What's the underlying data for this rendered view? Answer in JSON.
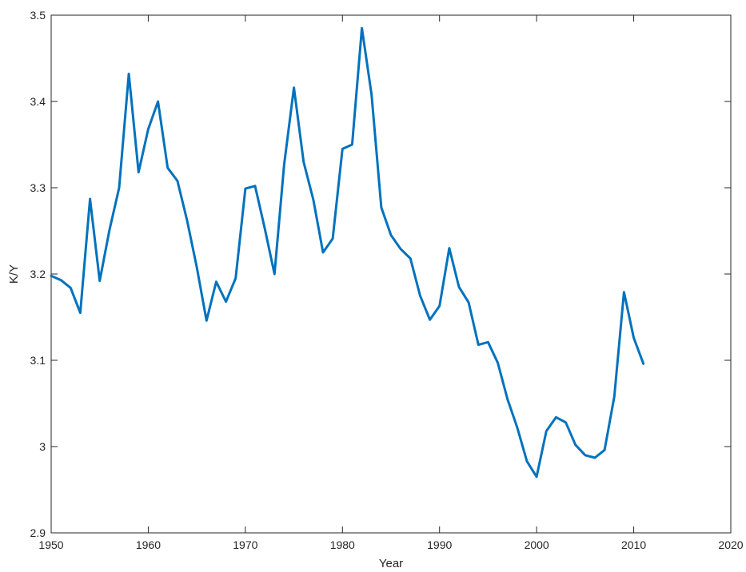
{
  "chart_data": {
    "type": "line",
    "title": "",
    "xlabel": "Year",
    "ylabel": "K/Y",
    "xlim": [
      1950,
      2020
    ],
    "ylim": [
      2.9,
      3.5
    ],
    "xticks": [
      1950,
      1960,
      1970,
      1980,
      1990,
      2000,
      2010,
      2020
    ],
    "yticks": [
      2.9,
      3.0,
      3.1,
      3.2,
      3.3,
      3.4,
      3.5
    ],
    "xtick_labels": [
      "1950",
      "1960",
      "1970",
      "1980",
      "1990",
      "2000",
      "2010",
      "2020"
    ],
    "ytick_labels": [
      "2.9",
      "3",
      "3.1",
      "3.2",
      "3.3",
      "3.4",
      "3.5"
    ],
    "grid": false,
    "series": [
      {
        "color": "#0072BD",
        "x": [
          1950,
          1951,
          1952,
          1953,
          1954,
          1955,
          1956,
          1957,
          1958,
          1959,
          1960,
          1961,
          1962,
          1963,
          1964,
          1965,
          1966,
          1967,
          1968,
          1969,
          1970,
          1971,
          1972,
          1973,
          1974,
          1975,
          1976,
          1977,
          1978,
          1979,
          1980,
          1981,
          1982,
          1983,
          1984,
          1985,
          1986,
          1987,
          1988,
          1989,
          1990,
          1991,
          1992,
          1993,
          1994,
          1995,
          1996,
          1997,
          1998,
          1999,
          2000,
          2001,
          2002,
          2003,
          2004,
          2005,
          2006,
          2007,
          2008,
          2009,
          2010,
          2011
        ],
        "y": [
          3.198,
          3.193,
          3.184,
          3.155,
          3.287,
          3.192,
          3.251,
          3.3,
          3.432,
          3.318,
          3.368,
          3.4,
          3.323,
          3.308,
          3.262,
          3.208,
          3.146,
          3.191,
          3.168,
          3.195,
          3.299,
          3.302,
          3.253,
          3.2,
          3.327,
          3.416,
          3.33,
          3.286,
          3.225,
          3.241,
          3.345,
          3.35,
          3.485,
          3.408,
          3.277,
          3.245,
          3.229,
          3.218,
          3.175,
          3.147,
          3.163,
          3.23,
          3.185,
          3.167,
          3.118,
          3.121,
          3.097,
          3.055,
          3.022,
          2.983,
          2.965,
          3.018,
          3.034,
          3.028,
          3.002,
          2.99,
          2.987,
          2.996,
          3.058,
          3.179,
          3.126,
          3.096
        ]
      }
    ]
  }
}
